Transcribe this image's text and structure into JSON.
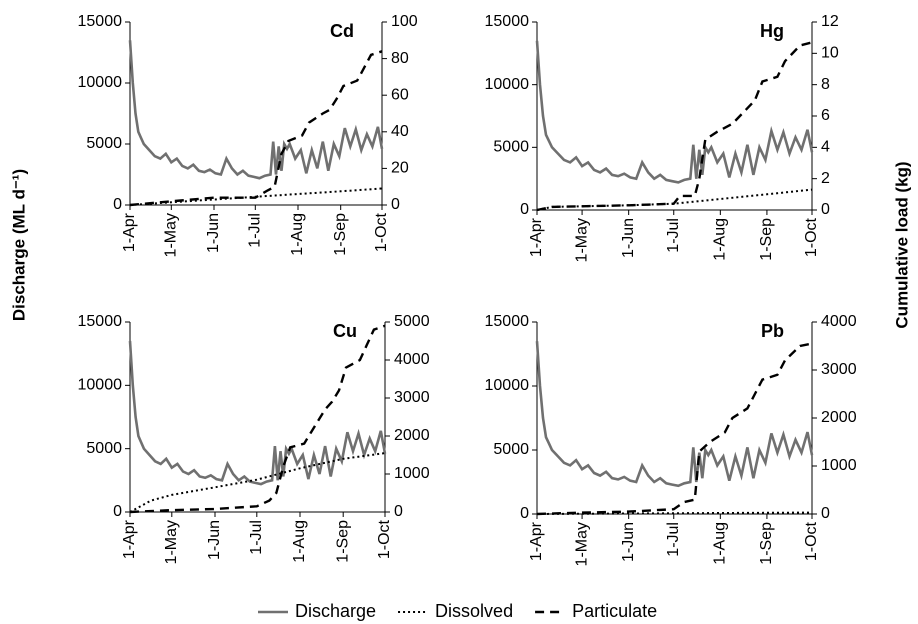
{
  "chart_data": [
    {
      "type": "line",
      "title": "Cd",
      "ylabel": "Discharge (ML d⁻¹)",
      "y2label": "Cumulative load (kg)",
      "x": [
        0,
        2,
        4,
        6,
        8,
        10,
        14,
        18,
        22,
        26,
        30,
        34,
        38,
        42,
        46,
        50,
        54,
        58,
        62,
        66,
        70,
        74,
        78,
        82,
        86,
        90,
        94,
        98,
        102,
        104,
        106,
        108,
        110,
        112,
        114,
        116,
        118,
        120,
        124,
        128,
        132,
        136,
        140,
        144,
        148,
        152,
        156,
        160,
        164,
        168,
        172,
        176,
        180,
        183
      ],
      "xlim": [
        0,
        183
      ],
      "xticks": [
        {
          "value": 0,
          "label": "1-Apr"
        },
        {
          "value": 30,
          "label": "1-May"
        },
        {
          "value": 61,
          "label": "1-Jun"
        },
        {
          "value": 91,
          "label": "1-Jul"
        },
        {
          "value": 122,
          "label": "1-Aug"
        },
        {
          "value": 153,
          "label": "1-Sep"
        },
        {
          "value": 183,
          "label": "1-Oct"
        }
      ],
      "ylim": [
        0,
        15000
      ],
      "yticks": [
        0,
        5000,
        10000,
        15000
      ],
      "y2lim": [
        0,
        100
      ],
      "y2ticks": [
        0,
        20,
        40,
        60,
        80,
        100
      ],
      "series": [
        {
          "name": "Discharge",
          "color": "#707070",
          "style": "solid",
          "values": [
            13500,
            10000,
            7500,
            6000,
            5500,
            5000,
            4500,
            4000,
            3800,
            4200,
            3500,
            3800,
            3200,
            3000,
            3300,
            2800,
            2700,
            2900,
            2600,
            2500,
            3800,
            3000,
            2500,
            2800,
            2400,
            2300,
            2200,
            2400,
            2500,
            5200,
            2500,
            4800,
            2800,
            5000,
            4600,
            5000,
            4400,
            3800,
            4500,
            2600,
            4500,
            3000,
            5200,
            2800,
            5000,
            4000,
            6300,
            4800,
            6200,
            4500,
            5800,
            4800,
            6400,
            4600
          ]
        },
        {
          "name": "Dissolved",
          "color": "#000000",
          "style": "dotted",
          "axis": "y2",
          "x": [
            0,
            30,
            61,
            91,
            122,
            153,
            183
          ],
          "values": [
            0,
            1.5,
            3,
            4.5,
            6,
            7.5,
            9
          ]
        },
        {
          "name": "Particulate",
          "color": "#000000",
          "style": "dashed",
          "axis": "y2",
          "x": [
            0,
            30,
            61,
            91,
            100,
            105,
            110,
            115,
            125,
            130,
            140,
            145,
            150,
            155,
            165,
            170,
            175,
            183
          ],
          "values": [
            0,
            2,
            4,
            4,
            8,
            10,
            28,
            35,
            38,
            45,
            50,
            52,
            58,
            65,
            68,
            75,
            82,
            84
          ]
        }
      ]
    },
    {
      "type": "line",
      "title": "Hg",
      "x": [
        0,
        2,
        4,
        6,
        8,
        10,
        14,
        18,
        22,
        26,
        30,
        34,
        38,
        42,
        46,
        50,
        54,
        58,
        62,
        66,
        70,
        74,
        78,
        82,
        86,
        90,
        94,
        98,
        102,
        104,
        106,
        108,
        110,
        112,
        114,
        116,
        118,
        120,
        124,
        128,
        132,
        136,
        140,
        144,
        148,
        152,
        156,
        160,
        164,
        168,
        172,
        176,
        180,
        183
      ],
      "xlim": [
        0,
        183
      ],
      "xticks": [
        {
          "value": 0,
          "label": "1-Apr"
        },
        {
          "value": 30,
          "label": "1-May"
        },
        {
          "value": 61,
          "label": "1-Jun"
        },
        {
          "value": 91,
          "label": "1-Jul"
        },
        {
          "value": 122,
          "label": "1-Aug"
        },
        {
          "value": 153,
          "label": "1-Sep"
        },
        {
          "value": 183,
          "label": "1-Oct"
        }
      ],
      "ylim": [
        0,
        15000
      ],
      "yticks": [
        0,
        5000,
        10000,
        15000
      ],
      "y2lim": [
        0,
        12
      ],
      "y2ticks": [
        0,
        2,
        4,
        6,
        8,
        10,
        12
      ],
      "series": [
        {
          "name": "Discharge",
          "color": "#707070",
          "style": "solid",
          "values": [
            13500,
            10000,
            7500,
            6000,
            5500,
            5000,
            4500,
            4000,
            3800,
            4200,
            3500,
            3800,
            3200,
            3000,
            3300,
            2800,
            2700,
            2900,
            2600,
            2500,
            3800,
            3000,
            2500,
            2800,
            2400,
            2300,
            2200,
            2400,
            2500,
            5200,
            2500,
            4800,
            2800,
            5000,
            4600,
            5000,
            4400,
            3800,
            4500,
            2600,
            4500,
            3000,
            5200,
            2800,
            5000,
            4000,
            6300,
            4800,
            6200,
            4500,
            5800,
            4800,
            6400,
            4600
          ]
        },
        {
          "name": "Dissolved",
          "color": "#000000",
          "style": "dotted",
          "axis": "y2",
          "x": [
            0,
            10,
            61,
            91,
            122,
            153,
            183
          ],
          "values": [
            0,
            0.2,
            0.3,
            0.4,
            0.7,
            1,
            1.3
          ]
        },
        {
          "name": "Particulate",
          "color": "#000000",
          "style": "dashed",
          "axis": "y2",
          "x": [
            0,
            10,
            61,
            91,
            95,
            105,
            108,
            112,
            120,
            130,
            140,
            145,
            150,
            160,
            165,
            175,
            183
          ],
          "values": [
            0,
            0.2,
            0.3,
            0.4,
            0.9,
            0.9,
            2,
            4.5,
            5,
            5.5,
            6.5,
            7,
            8.2,
            8.5,
            9.5,
            10.5,
            10.7
          ]
        }
      ]
    },
    {
      "type": "line",
      "title": "Cu",
      "x": [
        0,
        2,
        4,
        6,
        8,
        10,
        14,
        18,
        22,
        26,
        30,
        34,
        38,
        42,
        46,
        50,
        54,
        58,
        62,
        66,
        70,
        74,
        78,
        82,
        86,
        90,
        94,
        98,
        102,
        104,
        106,
        108,
        110,
        112,
        114,
        116,
        118,
        120,
        124,
        128,
        132,
        136,
        140,
        144,
        148,
        152,
        156,
        160,
        164,
        168,
        172,
        176,
        180,
        183
      ],
      "xlim": [
        0,
        183
      ],
      "xticks": [
        {
          "value": 0,
          "label": "1-Apr"
        },
        {
          "value": 30,
          "label": "1-May"
        },
        {
          "value": 61,
          "label": "1-Jun"
        },
        {
          "value": 91,
          "label": "1-Jul"
        },
        {
          "value": 122,
          "label": "1-Aug"
        },
        {
          "value": 153,
          "label": "1-Sep"
        },
        {
          "value": 183,
          "label": "1-Oct"
        }
      ],
      "ylim": [
        0,
        15000
      ],
      "yticks": [
        0,
        5000,
        10000,
        15000
      ],
      "y2lim": [
        0,
        5000
      ],
      "y2ticks": [
        0,
        1000,
        2000,
        3000,
        4000,
        5000
      ],
      "series": [
        {
          "name": "Discharge",
          "color": "#707070",
          "style": "solid",
          "values": [
            13500,
            10000,
            7500,
            6000,
            5500,
            5000,
            4500,
            4000,
            3800,
            4200,
            3500,
            3800,
            3200,
            3000,
            3300,
            2800,
            2700,
            2900,
            2600,
            2500,
            3800,
            3000,
            2500,
            2800,
            2400,
            2300,
            2200,
            2400,
            2500,
            5200,
            2500,
            4800,
            2800,
            5000,
            4600,
            5000,
            4400,
            3800,
            4500,
            2600,
            4500,
            3000,
            5200,
            2800,
            5000,
            4000,
            6300,
            4800,
            6200,
            4500,
            5800,
            4800,
            6400,
            4600
          ]
        },
        {
          "name": "Dissolved",
          "color": "#000000",
          "style": "dotted",
          "axis": "y2",
          "x": [
            0,
            15,
            30,
            61,
            91,
            122,
            153,
            183
          ],
          "values": [
            0,
            300,
            450,
            650,
            850,
            1150,
            1400,
            1550
          ]
        },
        {
          "name": "Particulate",
          "color": "#000000",
          "style": "dashed",
          "axis": "y2",
          "x": [
            0,
            30,
            61,
            91,
            100,
            105,
            110,
            115,
            125,
            130,
            140,
            145,
            150,
            155,
            165,
            170,
            175,
            183
          ],
          "values": [
            0,
            50,
            80,
            150,
            300,
            500,
            1200,
            1700,
            1800,
            2100,
            2700,
            2900,
            3200,
            3800,
            4000,
            4400,
            4800,
            4900
          ]
        }
      ]
    },
    {
      "type": "line",
      "title": "Pb",
      "x": [
        0,
        2,
        4,
        6,
        8,
        10,
        14,
        18,
        22,
        26,
        30,
        34,
        38,
        42,
        46,
        50,
        54,
        58,
        62,
        66,
        70,
        74,
        78,
        82,
        86,
        90,
        94,
        98,
        102,
        104,
        106,
        108,
        110,
        112,
        114,
        116,
        118,
        120,
        124,
        128,
        132,
        136,
        140,
        144,
        148,
        152,
        156,
        160,
        164,
        168,
        172,
        176,
        180,
        183
      ],
      "xlim": [
        0,
        183
      ],
      "xticks": [
        {
          "value": 0,
          "label": "1-Apr"
        },
        {
          "value": 30,
          "label": "1-May"
        },
        {
          "value": 61,
          "label": "1-Jun"
        },
        {
          "value": 91,
          "label": "1-Jul"
        },
        {
          "value": 122,
          "label": "1-Aug"
        },
        {
          "value": 153,
          "label": "1-Sep"
        },
        {
          "value": 183,
          "label": "1-Oct"
        }
      ],
      "ylim": [
        0,
        15000
      ],
      "yticks": [
        0,
        5000,
        10000,
        15000
      ],
      "y2lim": [
        0,
        4000
      ],
      "y2ticks": [
        0,
        1000,
        2000,
        3000,
        4000
      ],
      "series": [
        {
          "name": "Discharge",
          "color": "#707070",
          "style": "solid",
          "values": [
            13500,
            10000,
            7500,
            6000,
            5500,
            5000,
            4500,
            4000,
            3800,
            4200,
            3500,
            3800,
            3200,
            3000,
            3300,
            2800,
            2700,
            2900,
            2600,
            2500,
            3800,
            3000,
            2500,
            2800,
            2400,
            2300,
            2200,
            2400,
            2500,
            5200,
            2500,
            4800,
            2800,
            5000,
            4600,
            5000,
            4400,
            3800,
            4500,
            2600,
            4500,
            3000,
            5200,
            2800,
            5000,
            4000,
            6300,
            4800,
            6200,
            4500,
            5800,
            4800,
            6400,
            4600
          ]
        },
        {
          "name": "Dissolved",
          "color": "#000000",
          "style": "dotted",
          "axis": "y2",
          "x": [
            0,
            61,
            122,
            183
          ],
          "values": [
            0,
            10,
            20,
            30
          ]
        },
        {
          "name": "Particulate",
          "color": "#000000",
          "style": "dashed",
          "axis": "y2",
          "x": [
            0,
            30,
            61,
            91,
            98,
            105,
            108,
            115,
            125,
            130,
            140,
            145,
            150,
            160,
            165,
            175,
            183
          ],
          "values": [
            0,
            30,
            50,
            100,
            250,
            300,
            1300,
            1500,
            1700,
            2000,
            2200,
            2500,
            2800,
            2900,
            3200,
            3500,
            3550
          ]
        }
      ]
    }
  ]
}
